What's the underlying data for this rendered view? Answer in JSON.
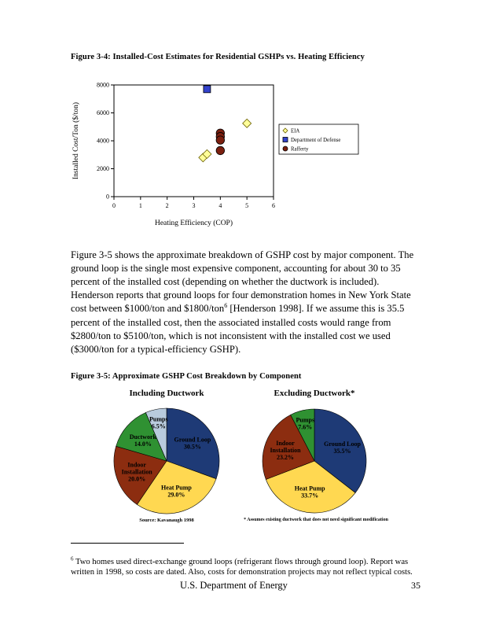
{
  "figure34": {
    "title": "Figure 3-4:  Installed-Cost Estimates for Residential GSHPs vs. Heating Efficiency"
  },
  "paragraph": {
    "part1": "Figure 3-5 shows the approximate breakdown of GSHP cost by major component.  The ground loop is the single most expensive component, accounting for about 30 to 35 percent of the installed cost (depending on whether the ductwork is included).  Henderson reports that ground loops for four demonstration homes in New York State cost between $1000/ton and $1800/ton",
    "superscript": "6",
    "part2": " [Henderson 1998].  If we assume this is 35.5 percent of the installed cost, then the associated installed costs would range from $2800/ton to $5100/ton, which is not inconsistent with the installed cost we used ($3000/ton for a typical-efficiency GSHP)."
  },
  "figure35": {
    "title": "Figure 3-5: Approximate GSHP Cost Breakdown by Component"
  },
  "footnote": {
    "marker": "6",
    "text": " Two homes used direct-exchange ground loops (refrigerant flows through ground loop).  Report was written in 1998, so costs are dated.  Also, costs for demonstration projects may not reflect typical costs."
  },
  "footer": {
    "text": "U.S. Department of Energy",
    "page_number": "35"
  },
  "chart_data": [
    {
      "type": "scatter",
      "title": "",
      "xlabel": "Heating Efficiency (COP)",
      "ylabel": "Installed Cost/Ton ($/ton)",
      "xlim": [
        0,
        6
      ],
      "ylim": [
        0,
        8000
      ],
      "xticks": [
        0,
        1,
        2,
        3,
        4,
        5,
        6
      ],
      "yticks": [
        0,
        2000,
        4000,
        6000,
        8000
      ],
      "grid": false,
      "legend_position": "right",
      "series": [
        {
          "name": "EIA",
          "marker": "diamond",
          "color": "#FFFF99",
          "border": "#6B6000",
          "size": 11,
          "points": [
            [
              3.35,
              2800
            ],
            [
              3.5,
              3050
            ],
            [
              5.0,
              5250
            ]
          ]
        },
        {
          "name": "Department of Defense",
          "marker": "square",
          "color": "#3342CC",
          "border": "#000000",
          "size": 9,
          "points": [
            [
              3.5,
              7700
            ]
          ]
        },
        {
          "name": "Rafferty",
          "marker": "circle",
          "color": "#7B1F0F",
          "border": "#000000",
          "size": 10.5,
          "points": [
            [
              4.0,
              4550
            ],
            [
              4.0,
              4300
            ],
            [
              4.0,
              4050
            ],
            [
              4.0,
              3300
            ]
          ]
        }
      ]
    },
    {
      "type": "pie",
      "title": "Including Ductwork",
      "note": "Source: Kavanaugh 1998",
      "slices": [
        {
          "label": "Ground Loop",
          "value": 30.5,
          "color": "#1E3A76",
          "text_color": "#FFFFFF"
        },
        {
          "label": "Heat Pump",
          "value": 29.0,
          "color": "#FFD851",
          "text_color": "#000000"
        },
        {
          "label": "Indoor Installation",
          "value": 20.0,
          "color": "#8C2D10",
          "text_color": "#000000"
        },
        {
          "label": "Ductwork",
          "value": 14.0,
          "color": "#2F9132",
          "text_color": "#000000"
        },
        {
          "label": "Pumps",
          "value": 6.5,
          "color": "#B9CBDD",
          "text_color": "#000000"
        }
      ]
    },
    {
      "type": "pie",
      "title": "Excluding Ductwork*",
      "note": "* Assumes existing ductwork that does not need significant modification",
      "slices": [
        {
          "label": "Ground Loop",
          "value": 35.5,
          "color": "#1E3A76",
          "text_color": "#FFFFFF"
        },
        {
          "label": "Heat Pump",
          "value": 33.7,
          "color": "#FFD851",
          "text_color": "#000000"
        },
        {
          "label": "Indoor Installation",
          "value": 23.2,
          "color": "#8C2D10",
          "text_color": "#000000"
        },
        {
          "label": "Pumps",
          "value": 7.6,
          "color": "#2F9132",
          "text_color": "#000000"
        }
      ]
    }
  ]
}
